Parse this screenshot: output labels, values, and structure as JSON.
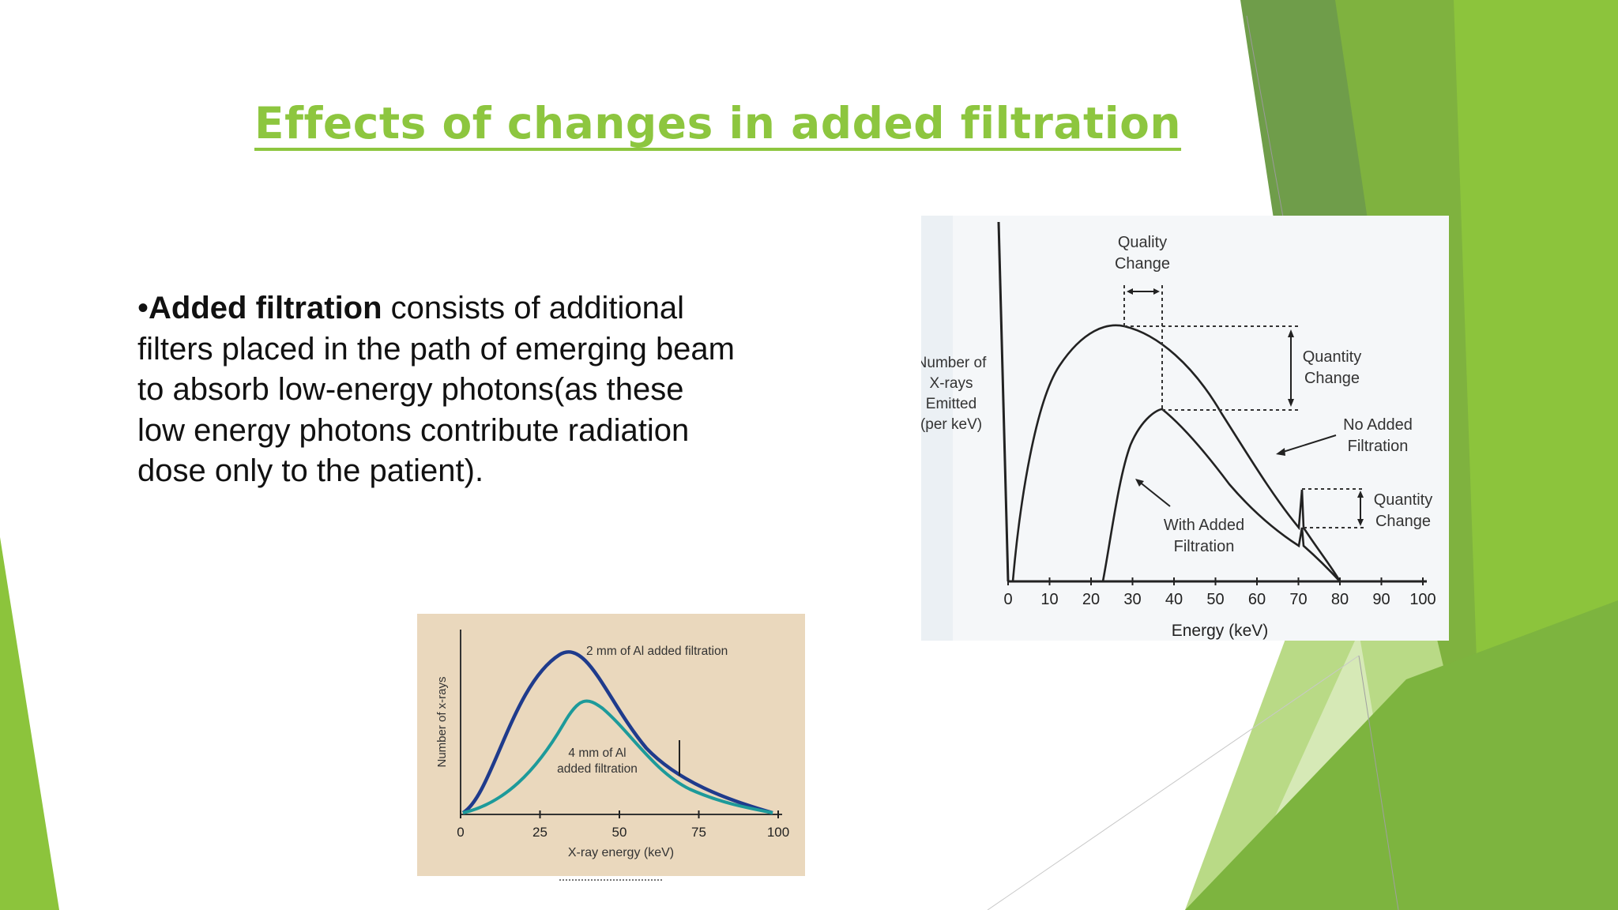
{
  "slide": {
    "title": "Effects of changes in added filtration",
    "bullet": {
      "marker": "•",
      "bold": "Added filtration",
      "rest": " consists of additional filters placed in the path of emerging beam to absorb low-energy photons(as these low energy photons contribute radiation dose only to the patient)."
    }
  },
  "colors": {
    "accent": "#8dc63f",
    "dark_green": "#6a9a3c",
    "light_green": "#c7e09a"
  },
  "figure_right": {
    "ylabel_lines": [
      "Number of",
      "X-rays",
      "Emitted",
      "(per keV)"
    ],
    "xlabel": "Energy (keV)",
    "x_ticks": [
      "0",
      "10",
      "20",
      "30",
      "40",
      "50",
      "60",
      "70",
      "80",
      "90",
      "100"
    ],
    "annotations": {
      "quality_change": [
        "Quality",
        "Change"
      ],
      "quantity_change_top": [
        "Quantity",
        "Change"
      ],
      "no_added": [
        "No Added",
        "Filtration"
      ],
      "quantity_change_bottom": [
        "Quantity",
        "Change"
      ],
      "with_added": [
        "With Added",
        "Filtration"
      ]
    }
  },
  "figure_left": {
    "ylabel": "Number of x-rays",
    "xlabel": "X-ray energy (keV)",
    "x_ticks": [
      "0",
      "25",
      "50",
      "75",
      "100"
    ],
    "label_2mm": "2 mm of Al added filtration",
    "label_4mm": [
      "4 mm of Al",
      "added filtration"
    ],
    "curve_2mm_color": "#1f3b8c",
    "curve_4mm_color": "#1d9a9a",
    "background": "#ead8bd"
  }
}
